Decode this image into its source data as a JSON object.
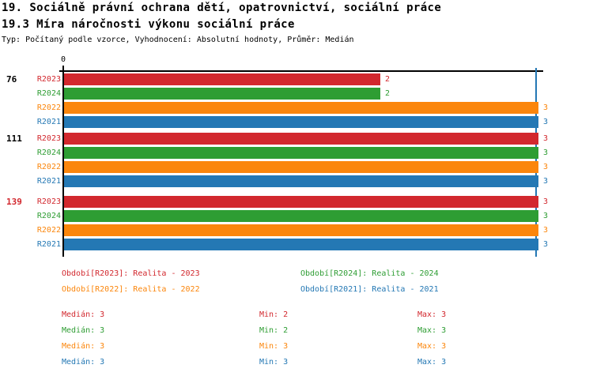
{
  "header": {
    "title_line1": "19. Sociálně právní ochrana dětí, opatrovnictví, sociální práce",
    "title_line2": "19.3 Míra náročnosti výkonu sociální práce",
    "subtitle": "Typ: Počítaný podle vzorce, Vyhodnocení: Absolutní hodnoty, Průměr: Medián"
  },
  "chart_data": {
    "type": "bar",
    "orientation": "horizontal",
    "x_axis": {
      "zero_label": "0",
      "range": [
        0,
        3
      ]
    },
    "median_line": {
      "value": 3,
      "color": "#2478b4"
    },
    "series_order": [
      "R2023",
      "R2024",
      "R2022",
      "R2021"
    ],
    "series_colors": {
      "R2023": "#d2282e",
      "R2024": "#2e9d33",
      "R2022": "#fb860c",
      "R2021": "#2478b4"
    },
    "groups": [
      {
        "label": "76",
        "label_color": "#000000",
        "values": {
          "R2023": 2,
          "R2024": 2,
          "R2022": 3,
          "R2021": 3
        }
      },
      {
        "label": "111",
        "label_color": "#000000",
        "values": {
          "R2023": 3,
          "R2024": 3,
          "R2022": 3,
          "R2021": 3
        }
      },
      {
        "label": "139",
        "label_color": "#d2282e",
        "values": {
          "R2023": 3,
          "R2024": 3,
          "R2022": 3,
          "R2021": 3
        }
      }
    ]
  },
  "legend": {
    "items": [
      {
        "series": "R2023",
        "label": "Období[R2023]: Realita - 2023"
      },
      {
        "series": "R2024",
        "label": "Období[R2024]: Realita - 2024"
      },
      {
        "series": "R2022",
        "label": "Období[R2022]: Realita - 2022"
      },
      {
        "series": "R2021",
        "label": "Období[R2021]: Realita - 2021"
      }
    ]
  },
  "stats": {
    "rows": [
      {
        "series": "R2023",
        "median": "Medián: 3",
        "min": "Min: 2",
        "max": "Max: 3"
      },
      {
        "series": "R2024",
        "median": "Medián: 3",
        "min": "Min: 2",
        "max": "Max: 3"
      },
      {
        "series": "R2022",
        "median": "Medián: 3",
        "min": "Min: 3",
        "max": "Max: 3"
      },
      {
        "series": "R2021",
        "median": "Medián: 3",
        "min": "Min: 3",
        "max": "Max: 3"
      }
    ]
  }
}
